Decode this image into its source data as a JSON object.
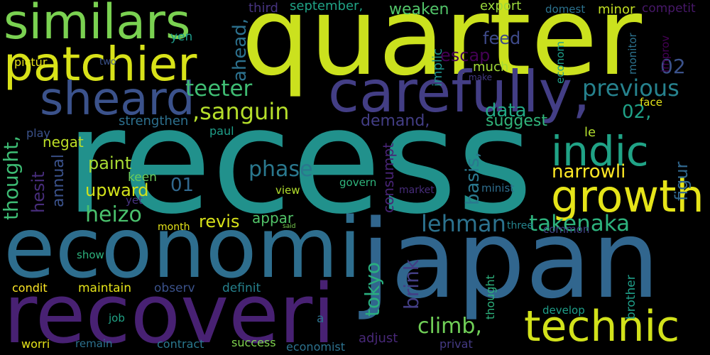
{
  "words": [
    {
      "text": "recess",
      "color": "#21918c"
    },
    {
      "text": "quarter",
      "color": "#cbe11e"
    },
    {
      "text": "japan",
      "color": "#31668e"
    },
    {
      "text": "economi",
      "color": "#2e6e8e"
    },
    {
      "text": "recoveri",
      "color": "#482173"
    },
    {
      "text": "carefully,",
      "color": "#433e85"
    },
    {
      "text": "similars",
      "color": "#7ad151"
    },
    {
      "text": "patchier",
      "color": "#d8e219"
    },
    {
      "text": "sheard",
      "color": "#3b528b"
    },
    {
      "text": "growth",
      "color": "#e5e419"
    },
    {
      "text": "technic",
      "color": "#d2e21b"
    },
    {
      "text": "indic",
      "color": "#20a386"
    },
    {
      "text": "takenaka",
      "color": "#2db27d"
    },
    {
      "text": "lehman",
      "color": "#2c728e"
    },
    {
      "text": "heizo",
      "color": "#4ac16d"
    },
    {
      "text": "climb,",
      "color": "#70cf57"
    },
    {
      "text": "previous",
      "color": "#26828e"
    },
    {
      "text": "teeter",
      "color": "#3fbc73"
    },
    {
      "text": ",sanguin",
      "color": "#b5de2b"
    },
    {
      "text": "phase",
      "color": "#2a788e"
    },
    {
      "text": "narrowli",
      "color": "#fde725"
    },
    {
      "text": "data",
      "color": "#22a884"
    },
    {
      "text": "02,",
      "color": "#1fa187"
    },
    {
      "text": "02",
      "color": "#3b528b"
    },
    {
      "text": "01",
      "color": "#31688e"
    },
    {
      "text": "thought,",
      "color": "#3dbc74"
    },
    {
      "text": "hesit",
      "color": "#472d7b"
    },
    {
      "text": "annual",
      "color": "#3b528b"
    },
    {
      "text": "ahead,",
      "color": "#2c718e"
    },
    {
      "text": "tokyo",
      "color": "#29af7f"
    },
    {
      "text": "brink",
      "color": "#433e85"
    },
    {
      "text": "basis,",
      "color": "#2a788e"
    },
    {
      "text": "consumpt",
      "color": "#482475"
    },
    {
      "text": "figur",
      "color": "#31688e"
    },
    {
      "text": "feed",
      "color": "#3e4a89"
    },
    {
      "text": "escap",
      "color": "#440154"
    },
    {
      "text": "implic",
      "color": "#20928c"
    },
    {
      "text": "much",
      "color": "#a2da37"
    },
    {
      "text": "make",
      "color": "#443a83"
    },
    {
      "text": "econom",
      "color": "#1f9e89"
    },
    {
      "text": "monitor",
      "color": "#2c728e"
    },
    {
      "text": "improv",
      "color": "#440154"
    },
    {
      "text": "september,",
      "color": "#20a386"
    },
    {
      "text": "weaken",
      "color": "#52c569"
    },
    {
      "text": "third",
      "color": "#46337f"
    },
    {
      "text": "export",
      "color": "#9bd93c"
    },
    {
      "text": "domest",
      "color": "#2c728e"
    },
    {
      "text": "minor",
      "color": "#c2df23"
    },
    {
      "text": "competit",
      "color": "#48186a"
    },
    {
      "text": "yen",
      "color": "#1e9b8a"
    },
    {
      "text": "pictur",
      "color": "#e7e419"
    },
    {
      "text": "two",
      "color": "#3b528b"
    },
    {
      "text": "face",
      "color": "#e5e419"
    },
    {
      "text": "le",
      "color": "#b2dd2d"
    },
    {
      "text": "negat",
      "color": "#bddf26"
    },
    {
      "text": "strengthen",
      "color": "#2d708e"
    },
    {
      "text": "demand,",
      "color": "#433e85"
    },
    {
      "text": "suggest",
      "color": "#31b57b"
    },
    {
      "text": "play",
      "color": "#3b528b"
    },
    {
      "text": "paul",
      "color": "#1f9e89"
    },
    {
      "text": "paint",
      "color": "#a8db34"
    },
    {
      "text": "keen",
      "color": "#6ccd5a"
    },
    {
      "text": "upward",
      "color": "#d2e21b"
    },
    {
      "text": "yet",
      "color": "#46327e"
    },
    {
      "text": "govern",
      "color": "#2fb47c"
    },
    {
      "text": "market",
      "color": "#472c7a"
    },
    {
      "text": "minist",
      "color": "#2e6e8e"
    },
    {
      "text": "view",
      "color": "#b2dd2d"
    },
    {
      "text": "month",
      "color": "#e5e419"
    },
    {
      "text": "revis",
      "color": "#d8e219"
    },
    {
      "text": "appar",
      "color": "#52c569"
    },
    {
      "text": "said",
      "color": "#7ad151"
    },
    {
      "text": "three",
      "color": "#25848e"
    },
    {
      "text": "common",
      "color": "#414487"
    },
    {
      "text": "show",
      "color": "#2db27d"
    },
    {
      "text": "condit",
      "color": "#fde725"
    },
    {
      "text": "maintain",
      "color": "#e5e419"
    },
    {
      "text": "observ",
      "color": "#3b528b"
    },
    {
      "text": "definit",
      "color": "#26828e"
    },
    {
      "text": "thought",
      "color": "#2db27d"
    },
    {
      "text": "brother",
      "color": "#1f9e89"
    },
    {
      "text": "develop",
      "color": "#1f9e89"
    },
    {
      "text": "job",
      "color": "#20a386"
    },
    {
      "text": "a",
      "color": "#2c728e"
    },
    {
      "text": "adjust",
      "color": "#482878"
    },
    {
      "text": "worri",
      "color": "#e5e419"
    },
    {
      "text": "remain",
      "color": "#2c718e"
    },
    {
      "text": "contract",
      "color": "#2a788e"
    },
    {
      "text": "success",
      "color": "#7fd34e"
    },
    {
      "text": "economist",
      "color": "#2c728e"
    },
    {
      "text": "privat",
      "color": "#443a83"
    }
  ]
}
